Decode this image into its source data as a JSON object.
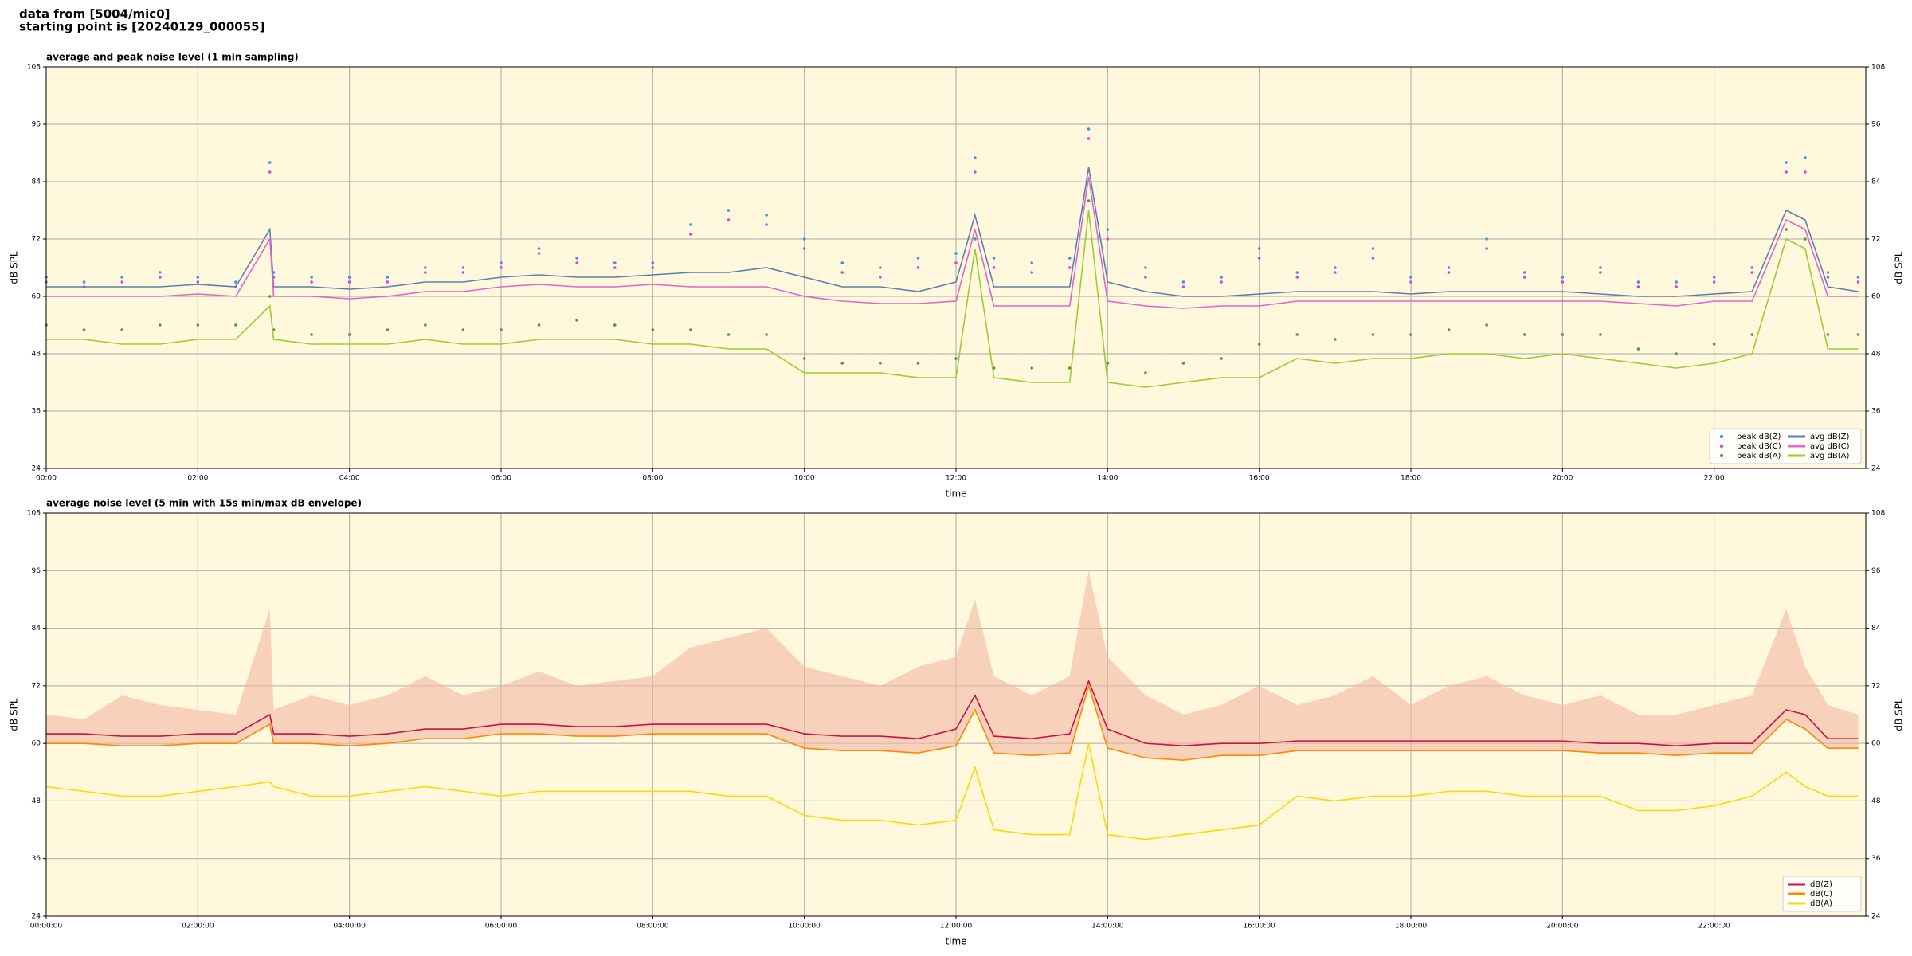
{
  "header": {
    "line1": "data from [5004/mic0]",
    "line2": "starting point is [20240129_000055]"
  },
  "chart_data": [
    {
      "type": "line",
      "title": "average and peak noise level (1 min sampling)",
      "xlabel": "time",
      "ylabel": "dB SPL",
      "x": [
        0,
        0.5,
        1,
        1.5,
        2,
        2.5,
        2.95,
        3,
        3.5,
        4,
        4.5,
        5,
        5.5,
        6,
        6.5,
        7,
        7.5,
        8,
        8.5,
        9,
        9.5,
        10,
        10.5,
        11,
        11.5,
        12,
        12.25,
        12.5,
        13,
        13.5,
        13.75,
        14,
        14.5,
        15,
        15.5,
        16,
        16.5,
        17,
        17.5,
        18,
        18.5,
        19,
        19.5,
        20,
        20.5,
        21,
        21.5,
        22,
        22.5,
        22.95,
        23.2,
        23.5,
        23.9
      ],
      "xlim": [
        0,
        24
      ],
      "xticks": [
        {
          "value": 0,
          "label": "00:00"
        },
        {
          "value": 2,
          "label": "02:00"
        },
        {
          "value": 4,
          "label": "04:00"
        },
        {
          "value": 6,
          "label": "06:00"
        },
        {
          "value": 8,
          "label": "08:00"
        },
        {
          "value": 10,
          "label": "10:00"
        },
        {
          "value": 12,
          "label": "12:00"
        },
        {
          "value": 14,
          "label": "14:00"
        },
        {
          "value": 16,
          "label": "16:00"
        },
        {
          "value": 18,
          "label": "18:00"
        },
        {
          "value": 20,
          "label": "20:00"
        },
        {
          "value": 22,
          "label": "22:00"
        }
      ],
      "ylim": [
        24,
        108
      ],
      "yticks": [
        24,
        36,
        48,
        60,
        72,
        84,
        96,
        108
      ],
      "grid": true,
      "legend": "lower right",
      "background": "#fff8dc",
      "series": [
        {
          "name": "peak dB(Z)",
          "kind": "scatter",
          "color": "#3399dd",
          "values": [
            64,
            63,
            64,
            65,
            64,
            63,
            88,
            65,
            64,
            64,
            64,
            66,
            66,
            67,
            70,
            68,
            67,
            67,
            75,
            78,
            77,
            72,
            67,
            66,
            68,
            69,
            89,
            68,
            67,
            68,
            95,
            74,
            66,
            63,
            64,
            70,
            65,
            66,
            70,
            64,
            66,
            72,
            65,
            64,
            66,
            63,
            63,
            64,
            66,
            88,
            89,
            65,
            64
          ]
        },
        {
          "name": "peak dB(C)",
          "kind": "scatter",
          "color": "#e040e0",
          "values": [
            63,
            62,
            63,
            64,
            63,
            62,
            86,
            64,
            63,
            63,
            63,
            65,
            65,
            66,
            69,
            67,
            66,
            66,
            73,
            76,
            75,
            70,
            65,
            64,
            66,
            67,
            86,
            66,
            65,
            66,
            93,
            72,
            64,
            62,
            63,
            68,
            64,
            65,
            68,
            63,
            65,
            70,
            64,
            63,
            65,
            62,
            62,
            63,
            65,
            86,
            86,
            64,
            63
          ]
        },
        {
          "name": "peak dB(A)",
          "kind": "scatter",
          "color": "#4a9c4a",
          "values": [
            54,
            53,
            53,
            54,
            54,
            54,
            60,
            53,
            52,
            52,
            53,
            54,
            53,
            53,
            54,
            55,
            54,
            53,
            53,
            52,
            52,
            47,
            46,
            46,
            46,
            47,
            72,
            45,
            45,
            45,
            80,
            46,
            44,
            46,
            47,
            50,
            52,
            51,
            52,
            52,
            53,
            54,
            52,
            52,
            52,
            49,
            48,
            50,
            52,
            74,
            72,
            52,
            52
          ]
        },
        {
          "name": "avg dB(Z)",
          "kind": "line",
          "color": "#5b7fb0",
          "values": [
            62,
            62,
            62,
            62,
            62.5,
            62,
            74,
            62,
            62,
            61.5,
            62,
            63,
            63,
            64,
            64.5,
            64,
            64,
            64.5,
            65,
            65,
            66,
            64,
            62,
            62,
            61,
            63,
            77,
            62,
            62,
            62,
            87,
            63,
            61,
            60,
            60,
            60.5,
            61,
            61,
            61,
            60.5,
            61,
            61,
            61,
            61,
            60.5,
            60,
            60,
            60.5,
            61,
            78,
            76,
            62,
            61
          ]
        },
        {
          "name": "avg dB(C)",
          "kind": "line",
          "color": "#e066cc",
          "values": [
            60,
            60,
            60,
            60,
            60.5,
            60,
            72,
            60,
            60,
            59.5,
            60,
            61,
            61,
            62,
            62.5,
            62,
            62,
            62.5,
            62,
            62,
            62,
            60,
            59,
            58.5,
            58.5,
            59,
            74,
            58,
            58,
            58,
            85,
            59,
            58,
            57.5,
            58,
            58,
            59,
            59,
            59,
            59,
            59,
            59,
            59,
            59,
            59,
            58.5,
            58,
            59,
            59,
            76,
            74,
            60,
            60
          ]
        },
        {
          "name": "avg dB(A)",
          "kind": "line",
          "color": "#9acd32",
          "values": [
            51,
            51,
            50,
            50,
            51,
            51,
            58,
            51,
            50,
            50,
            50,
            51,
            50,
            50,
            51,
            51,
            51,
            50,
            50,
            49,
            49,
            44,
            44,
            44,
            43,
            43,
            70,
            43,
            42,
            42,
            78,
            42,
            41,
            42,
            43,
            43,
            47,
            46,
            47,
            47,
            48,
            48,
            47,
            48,
            47,
            46,
            45,
            46,
            48,
            72,
            70,
            49,
            49
          ]
        }
      ]
    },
    {
      "type": "line",
      "title": "average noise level (5 min with 15s min/max dB envelope)",
      "xlabel": "time",
      "ylabel": "dB SPL",
      "x": [
        0,
        0.5,
        1,
        1.5,
        2,
        2.5,
        2.95,
        3,
        3.5,
        4,
        4.5,
        5,
        5.5,
        6,
        6.5,
        7,
        7.5,
        8,
        8.5,
        9,
        9.5,
        10,
        10.5,
        11,
        11.5,
        12,
        12.25,
        12.5,
        13,
        13.5,
        13.75,
        14,
        14.5,
        15,
        15.5,
        16,
        16.5,
        17,
        17.5,
        18,
        18.5,
        19,
        19.5,
        20,
        20.5,
        21,
        21.5,
        22,
        22.5,
        22.95,
        23.2,
        23.5,
        23.9
      ],
      "xlim": [
        0,
        24
      ],
      "xticks": [
        {
          "value": 0,
          "label": "00:00:00"
        },
        {
          "value": 2,
          "label": "02:00:00"
        },
        {
          "value": 4,
          "label": "04:00:00"
        },
        {
          "value": 6,
          "label": "06:00:00"
        },
        {
          "value": 8,
          "label": "08:00:00"
        },
        {
          "value": 10,
          "label": "10:00:00"
        },
        {
          "value": 12,
          "label": "12:00:00"
        },
        {
          "value": 14,
          "label": "14:00:00"
        },
        {
          "value": 16,
          "label": "16:00:00"
        },
        {
          "value": 18,
          "label": "18:00:00"
        },
        {
          "value": 20,
          "label": "20:00:00"
        },
        {
          "value": 22,
          "label": "22:00:00"
        }
      ],
      "ylim": [
        24,
        108
      ],
      "yticks": [
        24,
        36,
        48,
        60,
        72,
        84,
        96,
        108
      ],
      "grid": true,
      "legend": "lower right",
      "background": "#fff8dc",
      "envelope": {
        "color": "#f4b8a4",
        "values": [
          66,
          65,
          70,
          68,
          67,
          66,
          88,
          67,
          70,
          68,
          70,
          74,
          70,
          72,
          75,
          72,
          73,
          74,
          80,
          82,
          84,
          76,
          74,
          72,
          76,
          78,
          90,
          74,
          70,
          74,
          96,
          78,
          70,
          66,
          68,
          72,
          68,
          70,
          74,
          68,
          72,
          74,
          70,
          68,
          70,
          66,
          66,
          68,
          70,
          88,
          76,
          68,
          66
        ]
      },
      "series": [
        {
          "name": "dB(Z)",
          "kind": "line",
          "color": "#cc1144",
          "values": [
            62,
            62,
            61.5,
            61.5,
            62,
            62,
            66,
            62,
            62,
            61.5,
            62,
            63,
            63,
            64,
            64,
            63.5,
            63.5,
            64,
            64,
            64,
            64,
            62,
            61.5,
            61.5,
            61,
            63,
            70,
            61.5,
            61,
            62,
            73,
            63,
            60,
            59.5,
            60,
            60,
            60.5,
            60.5,
            60.5,
            60.5,
            60.5,
            60.5,
            60.5,
            60.5,
            60,
            60,
            59.5,
            60,
            60,
            67,
            66,
            61,
            61
          ]
        },
        {
          "name": "dB(C)",
          "kind": "line",
          "color": "#ff8800",
          "values": [
            60,
            60,
            59.5,
            59.5,
            60,
            60,
            64,
            60,
            60,
            59.5,
            60,
            61,
            61,
            62,
            62,
            61.5,
            61.5,
            62,
            62,
            62,
            62,
            59,
            58.5,
            58.5,
            58,
            59.5,
            67,
            58,
            57.5,
            58,
            72,
            59,
            57,
            56.5,
            57.5,
            57.5,
            58.5,
            58.5,
            58.5,
            58.5,
            58.5,
            58.5,
            58.5,
            58.5,
            58,
            58,
            57.5,
            58,
            58,
            65,
            63,
            59,
            59
          ]
        },
        {
          "name": "dB(A)",
          "kind": "line",
          "color": "#ffd700",
          "values": [
            51,
            50,
            49,
            49,
            50,
            51,
            52,
            51,
            49,
            49,
            50,
            51,
            50,
            49,
            50,
            50,
            50,
            50,
            50,
            49,
            49,
            45,
            44,
            44,
            43,
            44,
            55,
            42,
            41,
            41,
            60,
            41,
            40,
            41,
            42,
            43,
            49,
            48,
            49,
            49,
            50,
            50,
            49,
            49,
            49,
            46,
            46,
            47,
            49,
            54,
            51,
            49,
            49
          ]
        }
      ]
    }
  ]
}
